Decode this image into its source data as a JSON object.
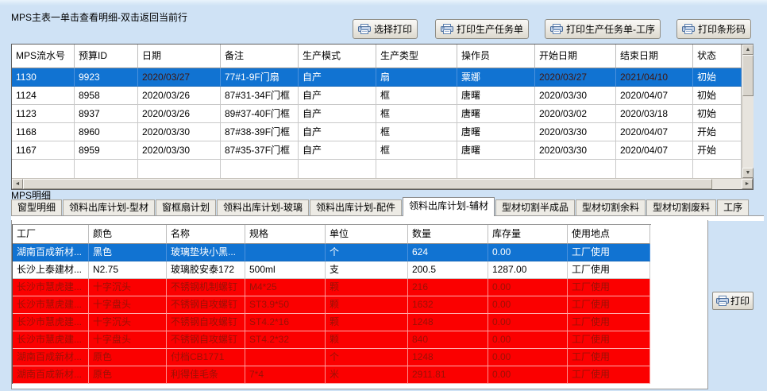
{
  "main": {
    "title": "MPS主表一单击查看明细-双击返回当前行",
    "buttons": [
      {
        "label": "选择打印"
      },
      {
        "label": "打印生产任务单"
      },
      {
        "label": "打印生产任务单-工序"
      },
      {
        "label": "打印条形码"
      }
    ],
    "table": {
      "columns": [
        "MPS流水号",
        "预算ID",
        "日期",
        "备注",
        "生产模式",
        "生产类型",
        "操作员",
        "开始日期",
        "结束日期",
        "状态"
      ],
      "rows": [
        [
          "1130",
          "9923",
          "2020/03/27",
          "77#1-9F门扇",
          "自产",
          "扇",
          "粟娜",
          "2020/03/27",
          "2021/04/10",
          "初始"
        ],
        [
          "1124",
          "8958",
          "2020/03/26",
          "87#31-34F门框",
          "自产",
          "框",
          "唐曙",
          "2020/03/30",
          "2020/04/07",
          "初始"
        ],
        [
          "1123",
          "8937",
          "2020/03/26",
          "89#37-40F门框",
          "自产",
          "框",
          "唐曙",
          "2020/03/02",
          "2020/03/18",
          "初始"
        ],
        [
          "1168",
          "8960",
          "2020/03/30",
          "87#38-39F门框",
          "自产",
          "框",
          "唐曙",
          "2020/03/30",
          "2020/04/07",
          "开始"
        ],
        [
          "1167",
          "8959",
          "2020/03/30",
          "87#35-37F门框",
          "自产",
          "框",
          "唐曙",
          "2020/03/30",
          "2020/04/07",
          "开始"
        ]
      ],
      "selected_row": 0
    }
  },
  "detail": {
    "label": "MPS明细",
    "tabs": [
      "窗型明细",
      "领料出库计划-型材",
      "窗框扇计划",
      "领料出库计划-玻璃",
      "领料出库计划-配件",
      "领料出库计划-辅材",
      "型材切割半成品",
      "型材切割余料",
      "型材切割废料",
      "工序"
    ],
    "active_tab": 5,
    "table": {
      "columns": [
        "工厂",
        "颜色",
        "名称",
        "规格",
        "单位",
        "数量",
        "库存量",
        "使用地点"
      ],
      "rows": [
        [
          "湖南百成新材...",
          "黑色",
          "玻璃垫块小黑...",
          "",
          "个",
          "624",
          "0.00",
          "工厂使用"
        ],
        [
          "长沙上泰建材...",
          "N2.75",
          "玻璃胶安泰172",
          "500ml",
          "支",
          "200.5",
          "1287.00",
          "工厂使用"
        ],
        [
          "长沙市慧虎建...",
          "十字沉头",
          "不锈钢机制螺钉",
          "M4*25",
          "颗",
          "216",
          "0.00",
          "工厂使用"
        ],
        [
          "长沙市慧虎建...",
          "十字盘头",
          "不锈钢自攻螺钉",
          "ST3.9*50",
          "颗",
          "1632",
          "0.00",
          "工厂使用"
        ],
        [
          "长沙市慧虎建...",
          "十字沉头",
          "不锈钢自攻螺钉",
          "ST4.2*16",
          "颗",
          "1248",
          "0.00",
          "工厂使用"
        ],
        [
          "长沙市慧虎建...",
          "十字盘头",
          "不锈钢自攻螺钉",
          "ST4.2*32",
          "颗",
          "840",
          "0.00",
          "工厂使用"
        ],
        [
          "湖南百成新材...",
          "原色",
          "付档CB1771",
          "",
          "个",
          "1248",
          "0.00",
          "工厂使用"
        ],
        [
          "湖南百成新材...",
          "原色",
          "利得佳毛条",
          "7*4",
          "米",
          "2911.81",
          "0.00",
          "工厂使用"
        ]
      ],
      "selected_row": 0,
      "warning_rows": [
        2,
        3,
        4,
        5,
        6,
        7
      ]
    },
    "print_button_label": "打印"
  },
  "colors": {
    "background": "#cfe2f5",
    "selection": "#1173d2",
    "warning_row": "#fb0000",
    "warning_text": "#9b1005"
  }
}
